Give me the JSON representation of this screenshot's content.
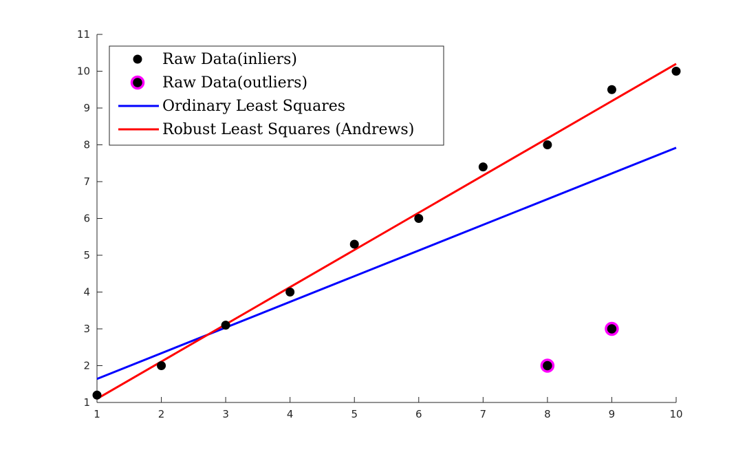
{
  "chart_data": {
    "type": "scatter",
    "title": "",
    "xlabel": "",
    "ylabel": "",
    "xlim": [
      1,
      10
    ],
    "ylim": [
      1,
      11
    ],
    "xticks": [
      1,
      2,
      3,
      4,
      5,
      6,
      7,
      8,
      9,
      10
    ],
    "yticks": [
      1,
      2,
      3,
      4,
      5,
      6,
      7,
      8,
      9,
      10,
      11
    ],
    "grid": false,
    "legend_position": "top-left",
    "series": [
      {
        "name": "Raw Data(inliers)",
        "kind": "scatter",
        "color": "#000000",
        "x": [
          1,
          2,
          3,
          4,
          5,
          6,
          7,
          8,
          9,
          10
        ],
        "y": [
          1.2,
          2.0,
          3.1,
          4.0,
          5.3,
          6.0,
          7.4,
          8.0,
          9.5,
          10.0
        ]
      },
      {
        "name": "Raw Data(outliers)",
        "kind": "scatter",
        "color": "#000000",
        "edge_color": "#ff00ff",
        "x": [
          8,
          9
        ],
        "y": [
          2.0,
          3.0
        ]
      },
      {
        "name": "Ordinary Least Squares",
        "kind": "line",
        "color": "#0000ff",
        "x": [
          1,
          10
        ],
        "y": [
          1.64,
          7.92
        ]
      },
      {
        "name": "Robust Least Squares (Andrews)",
        "kind": "line",
        "color": "#ff0000",
        "x": [
          1,
          10
        ],
        "y": [
          1.1,
          10.2
        ]
      }
    ]
  }
}
